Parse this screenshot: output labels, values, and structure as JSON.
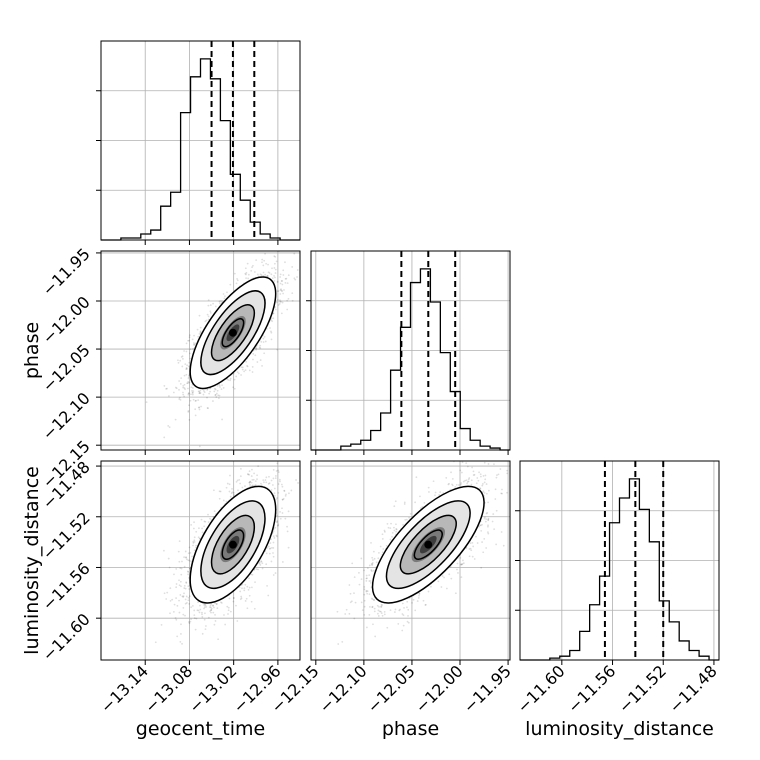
{
  "chart_data": {
    "type": "corner",
    "parameters": [
      "geocent_time",
      "phase",
      "luminosity_distance"
    ],
    "axis_labels": {
      "geocent_time": "geocent_time",
      "phase": "phase",
      "luminosity_distance": "luminosity_distance"
    },
    "ranges": {
      "geocent_time": [
        -13.2,
        -12.93
      ],
      "phase": [
        -12.155,
        -11.948
      ],
      "luminosity_distance": [
        -11.633,
        -11.476
      ]
    },
    "ticks": {
      "geocent_time": [
        -13.14,
        -13.08,
        -13.02,
        -12.96
      ],
      "phase": [
        -12.15,
        -12.1,
        -12.05,
        -12.0,
        -11.95
      ],
      "luminosity_distance": [
        -11.6,
        -11.56,
        -11.52,
        -11.48
      ]
    },
    "tick_labels": {
      "geocent_time": [
        "−13.14",
        "−13.08",
        "−13.02",
        "−12.96"
      ],
      "phase": [
        "−12.15",
        "−12.10",
        "−12.05",
        "−12.00",
        "−11.95"
      ],
      "luminosity_distance": [
        "−11.60",
        "−11.56",
        "−11.52",
        "−11.48"
      ]
    },
    "histograms": {
      "geocent_time": {
        "edges": [
          -13.2,
          -13.1865,
          -13.173,
          -13.1595,
          -13.146,
          -13.1325,
          -13.119,
          -13.1055,
          -13.092,
          -13.0785,
          -13.065,
          -13.0515,
          -13.038,
          -13.0245,
          -13.011,
          -12.9975,
          -12.984,
          -12.9705,
          -12.957,
          -12.9435,
          -12.93
        ],
        "counts": [
          0,
          0,
          0.01,
          0.01,
          0.03,
          0.05,
          0.17,
          0.24,
          0.64,
          0.82,
          0.91,
          0.81,
          0.6,
          0.33,
          0.2,
          0.09,
          0.03,
          0.01,
          0,
          0
        ],
        "quantiles": [
          -13.05,
          -13.021,
          -12.992
        ]
      },
      "phase": {
        "edges": [
          -12.155,
          -12.14465,
          -12.1343,
          -12.12395,
          -12.1136,
          -12.10325,
          -12.0929,
          -12.08255,
          -12.0722,
          -12.06185,
          -12.0515,
          -12.04115,
          -12.0308,
          -12.02045,
          -12.0101,
          -11.99975,
          -11.9894,
          -11.97905,
          -11.9687,
          -11.95835,
          -11.948
        ],
        "counts": [
          0,
          0,
          0,
          0.02,
          0.03,
          0.05,
          0.1,
          0.19,
          0.41,
          0.63,
          0.86,
          0.93,
          0.76,
          0.5,
          0.3,
          0.11,
          0.05,
          0.02,
          0.01,
          0
        ],
        "quantiles": [
          -12.061,
          -12.033,
          -12.005
        ]
      },
      "luminosity_distance": {
        "edges": [
          -11.633,
          -11.62515,
          -11.6173,
          -11.60945,
          -11.6016,
          -11.59375,
          -11.5859,
          -11.57805,
          -11.5702,
          -11.56235,
          -11.5545,
          -11.54665,
          -11.5388,
          -11.53095,
          -11.5231,
          -11.51525,
          -11.5074,
          -11.49955,
          -11.4917,
          -11.48385,
          -11.476
        ],
        "counts": [
          0,
          0,
          0,
          0.01,
          0.02,
          0.05,
          0.15,
          0.29,
          0.44,
          0.72,
          0.85,
          0.95,
          0.79,
          0.62,
          0.31,
          0.2,
          0.1,
          0.05,
          0.02,
          0
        ],
        "quantiles": [
          -11.566,
          -11.542,
          -11.52
        ]
      }
    },
    "pairs": [
      {
        "x": "geocent_time",
        "y": "phase",
        "center": [
          -13.021,
          -12.033
        ],
        "sigma": [
          0.029,
          0.029
        ],
        "rho": 0.7
      },
      {
        "x": "geocent_time",
        "y": "luminosity_distance",
        "center": [
          -13.021,
          -11.542
        ],
        "sigma": [
          0.029,
          0.023
        ],
        "rho": 0.6
      },
      {
        "x": "phase",
        "y": "luminosity_distance",
        "center": [
          -12.033,
          -11.542
        ],
        "sigma": [
          0.029,
          0.023
        ],
        "rho": 0.72
      }
    ],
    "contour_levels": [
      0.5,
      1.0,
      1.5,
      2.0
    ],
    "grid": true,
    "legend": "none"
  }
}
